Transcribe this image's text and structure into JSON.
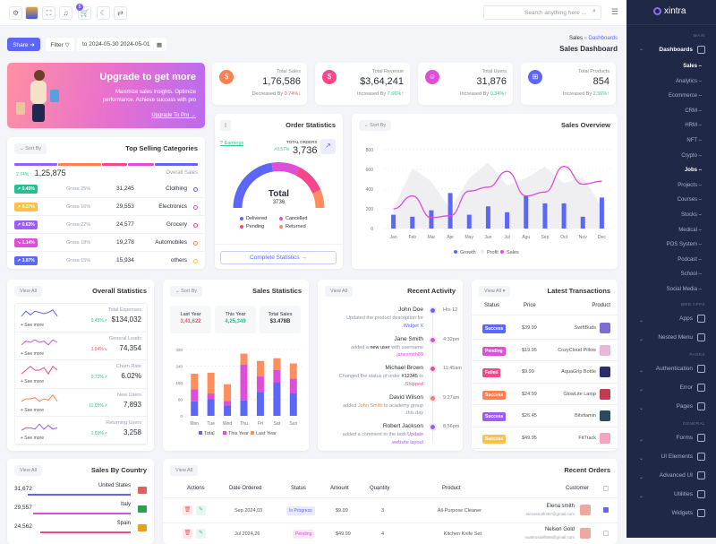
{
  "header": {
    "search_placeholder": "Search anything here ...",
    "cart_badge": "5",
    "icons": [
      "settings-icon",
      "avatar",
      "fullscreen-icon",
      "notification-icon",
      "cart-icon",
      "moon-icon",
      "language-icon"
    ]
  },
  "toolbar": {
    "share": "Share ➜",
    "filter": "Filter ▽",
    "date": "to 2024-05-30 2024-05-01"
  },
  "breadcrumb": {
    "parent": "Sales",
    "sep": "«",
    "current": "Dashboards",
    "title": "Sales Dashboard"
  },
  "banner": {
    "title": "Upgrade to get more",
    "text": "Maximize sales insights. Optimize performance. Achieve success with pro",
    "link": "Upgrade To Pro →"
  },
  "stats": [
    {
      "label": "Total Sales",
      "value": "1,76,586",
      "trend": "Decreased By",
      "change": "0.74%",
      "arrow": "↓",
      "color": "#ff7f50",
      "change_color": "#f25c5c",
      "icon": "$"
    },
    {
      "label": "Total Revenue",
      "value": "$3,64,241",
      "trend": "Increased By",
      "change": "7.66%",
      "arrow": "↑",
      "color": "#f6478b",
      "change_color": "#2ec68b",
      "icon": "$"
    },
    {
      "label": "Total Users",
      "value": "31,876",
      "trend": "Increased By",
      "change": "0.34%",
      "arrow": "↑",
      "color": "#de4ed9",
      "change_color": "#2ec68b",
      "icon": "☺"
    },
    {
      "label": "Total Products",
      "value": "854",
      "trend": "Increased By",
      "change": "2.56%",
      "arrow": "↑",
      "color": "#5c67f7",
      "change_color": "#2ec68b",
      "icon": "⊞"
    }
  ],
  "top_selling": {
    "title": "Top Selling Categories",
    "sort": "⌄ Sort By",
    "change": "2.74% ↑",
    "total": "1,25,875",
    "total_label": "Overall Sales",
    "bar_colors": [
      "#9d5cf5",
      "#ff7f50",
      "#f6478b",
      "#de4ed9",
      "#5c67f7"
    ],
    "rows": [
      {
        "badge": "↗ 0.45%",
        "badge_color": "#26bf94",
        "gross": "Gross 25%",
        "value": "31,245",
        "name": "Clothing",
        "dot": "#5c67f7"
      },
      {
        "badge": "↗ 0.27%",
        "badge_color": "#ffc04a",
        "gross": "Gross 16%",
        "value": "29,553",
        "name": "Electronics",
        "dot": "#de4ed9"
      },
      {
        "badge": "↗ 0.63%",
        "badge_color": "#9d5cf5",
        "gross": "Gross 22%",
        "value": "24,577",
        "name": "Grocery",
        "dot": "#f6478b"
      },
      {
        "badge": "↘ 1.14%",
        "badge_color": "#de4ed9",
        "gross": "Gross 18%",
        "value": "19,278",
        "name": "Automobiles",
        "dot": "#ff7f50"
      },
      {
        "badge": "↗ 3.87%",
        "badge_color": "#5c67f7",
        "gross": "Gross 15%",
        "value": "15,934",
        "name": "others",
        "dot": "#ffc04a"
      }
    ]
  },
  "order_stats": {
    "title": "Order Statistics",
    "menu": "⁝",
    "link": "? Earnings",
    "orders_label": "TOTAL ORDERS",
    "change": "↗0.57%",
    "value": "3,736",
    "center_label": "Total",
    "center_value": "3736",
    "button": "Complete Statistics →"
  },
  "sales_overview": {
    "title": "Sales Overview",
    "sort": "⌄ Sort By"
  },
  "overall_stats": {
    "title": "Overall Statistics",
    "view_all": "View All",
    "see_more": "+ See more",
    "items": [
      {
        "label": "Total Expenses",
        "change": "0.45%↗",
        "value": "$134,032",
        "color": "#5c67f7",
        "change_color": "#2ec68b",
        "spark": [
          3,
          7,
          4,
          7,
          6,
          5,
          6,
          8,
          3
        ]
      },
      {
        "label": "General Leads",
        "change": "3.84%↘",
        "value": "74,354",
        "color": "#de4ed9",
        "change_color": "#f25c5c",
        "spark": [
          3,
          6,
          5,
          7,
          5,
          6,
          3,
          7,
          5
        ]
      },
      {
        "label": "Churn Rate",
        "change": "0.72%↗",
        "value": "6.02%",
        "color": "#f6478b",
        "change_color": "#2ec68b",
        "spark": [
          2,
          5,
          8,
          5,
          5,
          7,
          2,
          8,
          5
        ]
      },
      {
        "label": "New Users",
        "change": "11.05%↗",
        "value": "7,893",
        "color": "#ff7f50",
        "change_color": "#2ec68b",
        "spark": [
          3,
          5,
          5,
          6,
          3,
          5,
          4,
          8,
          3
        ]
      },
      {
        "label": "Returning Users",
        "change": "1.69%↗",
        "value": "3,258",
        "color": "#9d5cf5",
        "change_color": "#2ec68b",
        "spark": [
          2,
          4,
          4,
          3,
          7,
          3,
          6,
          3,
          4
        ]
      }
    ]
  },
  "sales_statistics": {
    "title": "Sales Statistics",
    "sort": "⌄ Sort By",
    "summary": [
      {
        "label": "Last Year",
        "value": "3,41,622",
        "color": "#f25c5c"
      },
      {
        "label": "This Year",
        "value": "4,25,349",
        "color": "#26bf94"
      },
      {
        "label": "Total Sales",
        "value": "$3.478B",
        "color": "#333"
      }
    ]
  },
  "recent_activity": {
    "title": "Recent Activity",
    "view_all": "View All",
    "items": [
      {
        "name": "John Doe",
        "time": "Hrs 12",
        "dot": "#5c67f7",
        "parts": [
          [
            "Updated the product description for",
            ""
          ],
          [
            ".Widget X",
            "#5c67f7"
          ]
        ]
      },
      {
        "name": "Jane Smith",
        "time": "4:32pm",
        "dot": "#de4ed9",
        "parts": [
          [
            "added a ",
            ""
          ],
          [
            "new user",
            "#222"
          ],
          [
            " with username",
            ""
          ],
          [
            ".janesmith89",
            "#de4ed9"
          ]
        ]
      },
      {
        "name": "Michael Brown",
        "time": "11:45am",
        "dot": "#f6478b",
        "parts": [
          [
            "Changed the status of order ",
            ""
          ],
          [
            "#12345",
            "#222"
          ],
          [
            " to",
            ""
          ],
          [
            ".Shipped",
            "#f6478b"
          ]
        ]
      },
      {
        "name": "David Wilson",
        "time": "9:27am",
        "dot": "#ff7f50",
        "parts": [
          [
            "added ",
            ""
          ],
          [
            "John Smith",
            "#ff7f50"
          ],
          [
            " to academy group",
            ""
          ],
          [
            ".this day",
            ""
          ]
        ]
      },
      {
        "name": "Robert Jackson",
        "time": "8:56pm",
        "dot": "#9d5cf5",
        "parts": [
          [
            "added a comment to the task ",
            ""
          ],
          [
            "Update",
            "#9d5cf5"
          ],
          [
            ".website layout",
            "#9d5cf5"
          ]
        ]
      }
    ]
  },
  "transactions": {
    "title": "Latest Transactions",
    "view_all": "View All ▾",
    "headers": [
      "Status",
      "Price",
      "Product"
    ],
    "rows": [
      {
        "status": "Success",
        "color": "#5c67f7",
        "price": "$39.99",
        "product": "SwiftBuds",
        "thumb": "#7b6fd6"
      },
      {
        "status": "Pending",
        "color": "#de4ed9",
        "price": "$19.95",
        "product": "CozyCloud Pillow",
        "thumb": "#e9b6d8"
      },
      {
        "status": "Failed",
        "color": "#f6478b",
        "price": "$9.99",
        "product": "AquaGrip Bottle",
        "thumb": "#2d2a6e"
      },
      {
        "status": "Success",
        "color": "#ff7f50",
        "price": "$24.99",
        "product": "GlowLite Lamp",
        "thumb": "#c23a4f"
      },
      {
        "status": "Success",
        "color": "#9d5cf5",
        "price": "$26.45",
        "product": "Bitvitamin",
        "thumb": "#2b4a5e"
      },
      {
        "status": "Success",
        "color": "#ffc04a",
        "price": "$49.95",
        "product": "FitTrack",
        "thumb": "#f6a3c4"
      }
    ]
  },
  "sales_by_country": {
    "title": "Sales By Country",
    "view_all": "View All",
    "rows": [
      {
        "value": "31,672",
        "country": "United States",
        "color": "#5c67f7",
        "share": 0.9,
        "flag": "#e06060"
      },
      {
        "value": "29,557",
        "country": "Italy",
        "color": "#de4ed9",
        "share": 0.85,
        "flag": "#2e9e4f"
      },
      {
        "value": "24,562",
        "country": "Spain",
        "color": "#f6478b",
        "share": 0.79,
        "flag": "#e8a020"
      }
    ]
  },
  "recent_orders": {
    "title": "Recent Orders",
    "view_all": "View All",
    "headers": [
      "Actions",
      "Date Ordered",
      "Status",
      "Amount",
      "Quantity",
      "Product",
      "Customer"
    ],
    "rows": [
      {
        "date": "Sep 2024,03",
        "status": "In Progress",
        "status_color": "#5c67f7",
        "status_bg": "#e9eafe",
        "amount": "$9.99",
        "qty": "3",
        "product": "All-Purpose Cleaner",
        "customer": "Elena smith",
        "email": "elenasmith387@gmail.com",
        "checked": true
      },
      {
        "date": "Jul 2024,26",
        "status": "Pending",
        "status_color": "#de4ed9",
        "status_bg": "#fbe7fb",
        "amount": "$49.99",
        "qty": "4",
        "product": "Kitchen Knife Set",
        "customer": "Nelson Gold",
        "email": "noahrussell556@gmail.com",
        "checked": false
      }
    ]
  },
  "sidebar": {
    "brand": "xintra",
    "items": [
      {
        "type": "head",
        "label": "MAIN"
      },
      {
        "type": "menu",
        "label": "Dashboards",
        "open": true,
        "icon": "home-icon"
      },
      {
        "type": "sub",
        "label": "Sales",
        "active": true
      },
      {
        "type": "sub",
        "label": "Analytics"
      },
      {
        "type": "sub",
        "label": "Ecommerce"
      },
      {
        "type": "sub",
        "label": "CRM"
      },
      {
        "type": "sub",
        "label": "HRM"
      },
      {
        "type": "sub",
        "label": "NFT"
      },
      {
        "type": "sub",
        "label": "Crypto"
      },
      {
        "type": "sub",
        "label": "Jobs",
        "active": true
      },
      {
        "type": "sub",
        "label": "Projects"
      },
      {
        "type": "sub",
        "label": "Courses"
      },
      {
        "type": "sub",
        "label": "Stocks"
      },
      {
        "type": "sub",
        "label": "Medical"
      },
      {
        "type": "sub",
        "label": "POS System"
      },
      {
        "type": "sub",
        "label": "Podcast"
      },
      {
        "type": "sub",
        "label": "School"
      },
      {
        "type": "sub",
        "label": "Social Media"
      },
      {
        "type": "head",
        "label": "WEB APPS"
      },
      {
        "type": "menu",
        "label": "Apps",
        "icon": "apps-icon"
      },
      {
        "type": "menu",
        "label": "Nested Menu",
        "icon": "nested-menu-icon"
      },
      {
        "type": "head",
        "label": "PAGES"
      },
      {
        "type": "menu",
        "label": "Authentication",
        "icon": "lock-icon"
      },
      {
        "type": "menu",
        "label": "Error",
        "icon": "warning-icon"
      },
      {
        "type": "menu",
        "label": "Pages",
        "icon": "pages-icon"
      },
      {
        "type": "head",
        "label": "GENERAL"
      },
      {
        "type": "menu",
        "label": "Forms",
        "icon": "forms-icon"
      },
      {
        "type": "menu",
        "label": "UI Elements",
        "icon": "ui-elements-icon"
      },
      {
        "type": "menu",
        "label": "Advanced UI",
        "icon": "advanced-ui-icon"
      },
      {
        "type": "menu",
        "label": "Utilities",
        "icon": "utilities-icon"
      },
      {
        "type": "menu",
        "label": "Widgets",
        "icon": "widgets-icon",
        "nochev": true
      }
    ]
  },
  "chart_data": [
    {
      "type": "bar+line+area",
      "title": "Sales Overview",
      "categories": [
        "Jan",
        "Feb",
        "Mar",
        "Apr",
        "May",
        "Jun",
        "Jul",
        "Agu",
        "Sep",
        "Oct",
        "Nov",
        "Dec"
      ],
      "ylim": [
        0,
        800
      ],
      "yticks": [
        0,
        200,
        400,
        600,
        800
      ],
      "grid": true,
      "legend": "bottom",
      "series": [
        {
          "name": "Growth",
          "kind": "bar",
          "color": "#5c67f7",
          "values": [
            140,
            120,
            185,
            360,
            140,
            225,
            165,
            335,
            255,
            255,
            120,
            315
          ]
        },
        {
          "name": "Profit",
          "kind": "area",
          "color": "#ebebee",
          "values": [
            200,
            610,
            480,
            200,
            510,
            670,
            440,
            510,
            630,
            460,
            520,
            220
          ]
        },
        {
          "name": "Sales",
          "kind": "line",
          "color": "#de4ed9",
          "values": [
            200,
            330,
            110,
            130,
            380,
            420,
            580,
            330,
            370,
            630,
            450,
            480
          ]
        }
      ]
    },
    {
      "type": "stacked-bar",
      "title": "Sales Statistics",
      "categories": [
        "Mon",
        "Tue",
        "Wed",
        "Thu",
        "Fri",
        "Sat",
        "Sun"
      ],
      "ylim": [
        0,
        320
      ],
      "yticks": [
        0,
        80,
        160,
        240,
        320
      ],
      "legend": "bottom",
      "series": [
        {
          "name": "Total",
          "color": "#5c67f7",
          "values": [
            70,
            80,
            50,
            75,
            115,
            160,
            110
          ]
        },
        {
          "name": "This Year",
          "color": "#de4ed9",
          "values": [
            58,
            28,
            22,
            173,
            75,
            62,
            70
          ]
        },
        {
          "name": "Last Year",
          "color": "#ff8e5e",
          "values": [
            75,
            100,
            80,
            52,
            75,
            56,
            73
          ]
        }
      ]
    },
    {
      "type": "pie",
      "title": "Order Statistics",
      "shape": "half-donut",
      "legend": "bottom",
      "series": [
        {
          "name": "Delivered",
          "color": "#5c67f7",
          "values": [
            45
          ]
        },
        {
          "name": "Cancelled",
          "color": "#de4ed9",
          "values": [
            20
          ]
        },
        {
          "name": "Pending",
          "color": "#f6478b",
          "values": [
            22
          ]
        },
        {
          "name": "Returned",
          "color": "#ff8e5e",
          "values": [
            13
          ]
        }
      ]
    }
  ]
}
